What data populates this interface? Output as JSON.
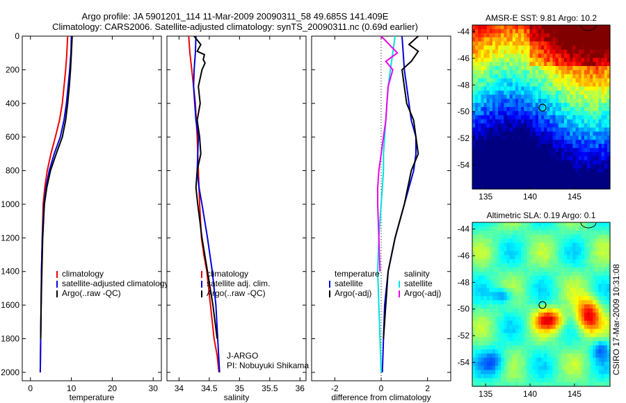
{
  "header": {
    "line1": "Argo profile: JA 5901201_114 11-Mar-2009 20090311_58 49.685S 141.409E",
    "line2": "Climatology: CARS2006. Satellite-adjusted climatology: synTS_20090311.nc (0.69d earlier)"
  },
  "colors": {
    "climatology": "#ee0000",
    "satellite": "#0000dd",
    "argo": "#000000",
    "diff_temp_sat": "#00e0e0",
    "diff_sal_sat": "#ee00ee"
  },
  "footer": {
    "institution": "J-ARGO",
    "pi": "PI: Nobuyuki Shikama",
    "stamp": "CSIRO 17-Mar-2009 10:31:08"
  },
  "chart_data": [
    {
      "id": "temperature",
      "type": "line",
      "xlabel": "temperature",
      "ylabel": "",
      "xlim": [
        -2,
        32
      ],
      "ylim": [
        2050,
        0
      ],
      "xticks": [
        0,
        10,
        20,
        30
      ],
      "yticks": [
        0,
        200,
        400,
        600,
        800,
        1000,
        1200,
        1400,
        1600,
        1800,
        2000
      ],
      "legend": {
        "position": "lower-right",
        "entries": [
          {
            "label": "climatology",
            "color": "#ee0000"
          },
          {
            "label": "satellite-adjusted climatology",
            "color": "#0000dd"
          },
          {
            "label": "Argo(..raw -QC)",
            "color": "#000000"
          }
        ]
      },
      "series": [
        {
          "name": "climatology",
          "color": "#ee0000",
          "x": [
            9.1,
            8.9,
            8.6,
            8.2,
            7.8,
            7.1,
            6.1,
            5.0,
            4.1,
            3.5,
            3.1,
            2.9,
            2.7,
            2.6,
            2.5,
            2.4
          ],
          "y": [
            0,
            100,
            200,
            300,
            400,
            500,
            600,
            700,
            800,
            900,
            1000,
            1200,
            1400,
            1600,
            1800,
            2000
          ]
        },
        {
          "name": "satellite-adjusted climatology",
          "color": "#0000dd",
          "x": [
            10.0,
            9.9,
            9.6,
            9.2,
            8.8,
            8.2,
            7.3,
            5.8,
            4.6,
            3.8,
            3.3,
            2.9,
            2.7,
            2.6,
            2.5,
            2.4
          ],
          "y": [
            0,
            100,
            200,
            300,
            400,
            500,
            600,
            700,
            800,
            900,
            1000,
            1200,
            1400,
            1600,
            1800,
            2000
          ]
        },
        {
          "name": "Argo(..raw -QC)",
          "color": "#000000",
          "x": [
            10.2,
            10.0,
            9.8,
            9.5,
            9.1,
            8.6,
            7.8,
            6.3,
            4.9,
            4.0,
            3.4,
            3.0,
            2.8,
            2.6,
            2.5
          ],
          "y": [
            0,
            100,
            200,
            300,
            400,
            500,
            600,
            700,
            800,
            900,
            1000,
            1200,
            1400,
            1600,
            1800
          ]
        }
      ]
    },
    {
      "id": "salinity",
      "type": "line",
      "xlabel": "salinity",
      "ylabel": "",
      "xlim": [
        33.8,
        36.1
      ],
      "ylim": [
        2050,
        0
      ],
      "xticks": [
        34,
        34.5,
        35,
        35.5,
        36
      ],
      "xticklabels": [
        "34",
        "34.5",
        "35",
        "35.5",
        "36"
      ],
      "legend": {
        "position": "lower-right",
        "entries": [
          {
            "label": "climatology",
            "color": "#ee0000"
          },
          {
            "label": "satellite adj. clim.",
            "color": "#0000dd"
          },
          {
            "label": "Argo(..raw -QC)",
            "color": "#000000"
          }
        ]
      },
      "series": [
        {
          "name": "climatology",
          "color": "#ee0000",
          "x": [
            34.16,
            34.18,
            34.21,
            34.24,
            34.27,
            34.3,
            34.32,
            34.34,
            34.37,
            34.41,
            34.46,
            34.52,
            34.58,
            34.63,
            34.66
          ],
          "y": [
            0,
            100,
            200,
            300,
            400,
            600,
            800,
            1000,
            1200,
            1300,
            1400,
            1600,
            1800,
            1900,
            2000
          ]
        },
        {
          "name": "satellite adj. clim.",
          "color": "#0000dd",
          "x": [
            34.28,
            34.27,
            34.25,
            34.24,
            34.26,
            34.28,
            34.32,
            34.31,
            34.3,
            34.33,
            34.38,
            34.47,
            34.55,
            34.61,
            34.64,
            34.67
          ],
          "y": [
            0,
            100,
            200,
            300,
            400,
            500,
            600,
            700,
            800,
            900,
            1000,
            1200,
            1400,
            1600,
            1800,
            2000
          ]
        },
        {
          "name": "Argo(..raw -QC)",
          "color": "#000000",
          "x": [
            34.25,
            34.36,
            34.3,
            34.42,
            34.4,
            34.43,
            34.38,
            34.32,
            34.35,
            34.3,
            34.34,
            34.36,
            34.3,
            34.28,
            34.31,
            34.38,
            34.47,
            34.56,
            34.63
          ],
          "y": [
            0,
            50,
            90,
            110,
            140,
            160,
            200,
            300,
            400,
            500,
            600,
            700,
            800,
            900,
            1000,
            1200,
            1400,
            1600,
            1800
          ]
        }
      ]
    },
    {
      "id": "difference",
      "type": "line",
      "xlabel": "difference from climatology",
      "ylabel": "",
      "xlim": [
        -3,
        3
      ],
      "ylim": [
        2050,
        0
      ],
      "xticks": [
        -2,
        0,
        2
      ],
      "xticklabels": [
        "-2",
        "0",
        "2"
      ],
      "zero_line": true,
      "legend": {
        "position": "lower-center",
        "columns": [
          {
            "title": "temperature",
            "entries": [
              {
                "label": "satellite",
                "color": "#0000dd"
              },
              {
                "label": "Argo(-adj)",
                "color": "#000000"
              }
            ]
          },
          {
            "title": "salinity",
            "entries": [
              {
                "label": "satellite",
                "color": "#00e0e0"
              },
              {
                "label": "Argo(-adj)",
                "color": "#ee00ee"
              }
            ]
          }
        ]
      },
      "series": [
        {
          "name": "temperature satellite",
          "color": "#0000dd",
          "x": [
            0.9,
            0.95,
            1.0,
            1.1,
            1.2,
            1.3,
            1.5,
            1.5,
            1.4,
            1.2,
            1.0,
            0.6,
            0.3,
            0.15,
            0.05
          ],
          "y": [
            0,
            100,
            200,
            300,
            400,
            500,
            600,
            700,
            800,
            900,
            1000,
            1200,
            1400,
            1600,
            2000
          ]
        },
        {
          "name": "temperature Argo(-adj)",
          "color": "#000000",
          "x": [
            1.6,
            1.2,
            1.6,
            1.3,
            0.9,
            1.0,
            1.1,
            1.4,
            1.5,
            1.6,
            1.3,
            1.0,
            0.6,
            0.3,
            0.1
          ],
          "y": [
            0,
            50,
            90,
            150,
            200,
            300,
            400,
            500,
            600,
            700,
            800,
            1000,
            1200,
            1400,
            1800
          ]
        },
        {
          "name": "salinity satellite",
          "color": "#00e0e0",
          "x": [
            0.6,
            0.5,
            0.4,
            0.3,
            0.25,
            0.2,
            0.15,
            0.1,
            0.1,
            0.05,
            0.0,
            -0.1,
            -0.15,
            -0.1,
            -0.05,
            0.0
          ],
          "y": [
            0,
            100,
            200,
            300,
            400,
            500,
            600,
            700,
            800,
            900,
            1000,
            1200,
            1400,
            1600,
            1800,
            2000
          ]
        },
        {
          "name": "salinity Argo(-adj)",
          "color": "#ee00ee",
          "x": [
            0.0,
            0.7,
            0.2,
            0.5,
            0.3,
            0.25,
            0.2,
            0.1,
            0.0,
            -0.1,
            -0.15,
            -0.15,
            -0.1,
            -0.05
          ],
          "y": [
            0,
            100,
            150,
            200,
            300,
            400,
            500,
            600,
            700,
            800,
            900,
            1000,
            1200,
            1400
          ]
        }
      ]
    },
    {
      "id": "sst-map",
      "type": "heatmap",
      "title": "AMSR-E SST: 9.81 Argo: 10.2",
      "xlim": [
        133.5,
        149
      ],
      "ylim": [
        -55.8,
        -43.5
      ],
      "xticks": [
        135,
        140,
        145
      ],
      "yticks": [
        -44,
        -46,
        -48,
        -50,
        -52,
        -54
      ],
      "marker": {
        "lon": 141.4,
        "lat": -49.7
      },
      "colormap": "jet"
    },
    {
      "id": "sla-map",
      "type": "heatmap",
      "title": "Altimetric SLA: 0.19 Argo: 0.1",
      "xlim": [
        133.5,
        149
      ],
      "ylim": [
        -55.8,
        -43.5
      ],
      "xticks": [
        135,
        140,
        145
      ],
      "yticks": [
        -44,
        -46,
        -48,
        -50,
        -52,
        -54
      ],
      "marker": {
        "lon": 141.4,
        "lat": -49.7
      },
      "colormap": "jet"
    }
  ]
}
